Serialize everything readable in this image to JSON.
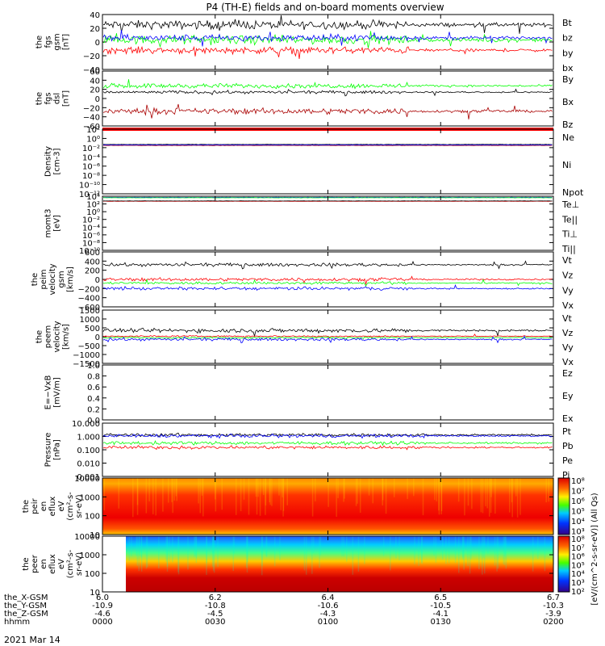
{
  "title": "P4 (TH-E) fields and on-board moments overview",
  "date_label": "2021 Mar 14",
  "chart_data": {
    "type": "line",
    "x_tick_labels": [
      "0000",
      "0030",
      "0100",
      "0130",
      "0200"
    ],
    "orbit": {
      "rows": [
        "the_X-GSM",
        "the_Y-GSM",
        "the_Z-GSM",
        "hhmm"
      ],
      "values": [
        [
          "6.0",
          "6.2",
          "6.4",
          "6.5",
          "6.7"
        ],
        [
          "-10.9",
          "-10.8",
          "-10.6",
          "-10.5",
          "-10.3"
        ],
        [
          "-4.6",
          "-4.5",
          "-4.3",
          "-4.1",
          "-3.9"
        ],
        [
          "0000",
          "0030",
          "0100",
          "0130",
          "0200"
        ]
      ]
    },
    "panels": [
      {
        "id": "fgs-gsm",
        "ylabel": [
          "the",
          "fgs",
          "gsm",
          "[nT]"
        ],
        "ylim": [
          -40,
          40
        ],
        "ticks": [
          "40",
          "20",
          "0",
          "−20",
          "−40"
        ],
        "series": [
          {
            "name": "Bt",
            "color": "#000000",
            "level": 25,
            "amp": 9
          },
          {
            "name": "bz",
            "color": "#ff0000",
            "level": -12,
            "amp": 7
          },
          {
            "name": "by",
            "color": "#00ff00",
            "level": 3,
            "amp": 9
          },
          {
            "name": "bx",
            "color": "#0000ff",
            "level": 6,
            "amp": 7
          }
        ]
      },
      {
        "id": "fgs-dsl",
        "ylabel": [
          "the",
          "fgs",
          "dsl",
          "[nT]"
        ],
        "ylim": [
          -70,
          60
        ],
        "ticks": [
          "60",
          "40",
          "20",
          "0",
          "−20",
          "−40",
          "−60"
        ],
        "series": [
          {
            "name": "By",
            "color": "#00ff00",
            "level": 25,
            "amp": 8
          },
          {
            "name": "Bx",
            "color": "#000000",
            "level": 10,
            "amp": 5
          },
          {
            "name": "Bz",
            "color": "#aa0000",
            "level": -35,
            "amp": 10
          }
        ]
      },
      {
        "id": "density",
        "ylabel": [
          "Density",
          "[cm-3]"
        ],
        "ticks": [
          "10²",
          "10⁰",
          "10⁻²",
          "10⁻⁴",
          "10⁻⁶",
          "10⁻⁸",
          "10⁻¹⁰",
          "10⁻¹²"
        ],
        "series": [
          {
            "name": "Ne",
            "color": "#aa0000",
            "level": 0.03
          },
          {
            "name": "Ni",
            "color": "#000000",
            "level": 0.05
          },
          {
            "name": "Npot",
            "color": "#0000ff",
            "level": 0.04
          }
        ]
      },
      {
        "id": "momt3",
        "ylabel": [
          "momt3",
          "[eV]"
        ],
        "ticks": [
          "10⁴",
          "10²",
          "10⁰",
          "10⁻²",
          "10⁻⁴",
          "10⁻⁶",
          "10⁻⁸",
          "10⁻¹⁰"
        ],
        "series": [
          {
            "name": "Te⊥",
            "color": "#ff0000",
            "level": 500
          },
          {
            "name": "Te||",
            "color": "#000000",
            "level": 600
          },
          {
            "name": "Ti⊥",
            "color": "#0000ff",
            "level": 5000
          },
          {
            "name": "Ti||",
            "color": "#00ff00",
            "level": 4000
          }
        ]
      },
      {
        "id": "peim-velocity",
        "ylabel": [
          "the",
          "peim",
          "velocity",
          "gsm",
          "[km/s]"
        ],
        "ylim": [
          -600,
          600
        ],
        "ticks": [
          "600",
          "400",
          "200",
          "0",
          "−200",
          "−400",
          "−600"
        ],
        "series": [
          {
            "name": "Vt",
            "color": "#000000",
            "level": 320,
            "amp": 50
          },
          {
            "name": "Vz",
            "color": "#ff0000",
            "level": 0,
            "amp": 50
          },
          {
            "name": "Vy",
            "color": "#00ff00",
            "level": -80,
            "amp": 40
          },
          {
            "name": "Vx",
            "color": "#0000ff",
            "level": -200,
            "amp": 50
          }
        ]
      },
      {
        "id": "peem-velocity",
        "ylabel": [
          "the",
          "peem",
          "velocity",
          "[km/s]"
        ],
        "ylim": [
          -1500,
          1500
        ],
        "ticks": [
          "1500",
          "1000",
          "500",
          "0",
          "−500",
          "−1000",
          "−1500"
        ],
        "series": [
          {
            "name": "Vt",
            "color": "#000000",
            "level": 350,
            "amp": 170
          },
          {
            "name": "Vz",
            "color": "#ff0000",
            "level": 30,
            "amp": 60
          },
          {
            "name": "Vy",
            "color": "#00ff00",
            "level": -50,
            "amp": 60
          },
          {
            "name": "Vx",
            "color": "#0000ff",
            "level": -150,
            "amp": 110
          }
        ]
      },
      {
        "id": "e-field",
        "ylabel": [
          "E=−VxB",
          "[mV/m]"
        ],
        "ylim": [
          0,
          1
        ],
        "ticks": [
          "1.0",
          "0.8",
          "0.6",
          "0.4",
          "0.2",
          "0.0"
        ],
        "series": [
          {
            "name": "Ez",
            "color": "#ff0000"
          },
          {
            "name": "Ey",
            "color": "#00ff00"
          },
          {
            "name": "Ex",
            "color": "#0000ff"
          }
        ]
      },
      {
        "id": "pressure",
        "ylabel": [
          "Pressure",
          "[nPa]"
        ],
        "ylim": [
          0.001,
          10
        ],
        "ticks": [
          "10.000",
          "1.000",
          "0.100",
          "0.010",
          "0.001"
        ],
        "series": [
          {
            "name": "Pt",
            "color": "#000000",
            "level": 1.3
          },
          {
            "name": "Pb",
            "color": "#ff0000",
            "level": 0.15
          },
          {
            "name": "Pe",
            "color": "#00ff00",
            "level": 0.32
          },
          {
            "name": "Pi",
            "color": "#0000ff",
            "level": 1.1
          }
        ]
      },
      {
        "id": "peir-en-eflux",
        "ylabel": [
          "the",
          "peir",
          "en",
          "eflux",
          "eV",
          "(cm²-s-",
          "sr-eV)"
        ],
        "ticks": [
          "10000",
          "1000",
          "100",
          "10"
        ],
        "type": "spectrogram"
      },
      {
        "id": "peer-en-eflux",
        "ylabel": [
          "the",
          "peer",
          "en",
          "eflux",
          "eV",
          "(cm²-s-",
          "sr-eV)"
        ],
        "ticks": [
          "10000",
          "1000",
          "100",
          "10"
        ],
        "type": "spectrogram"
      }
    ],
    "colorbar": {
      "label": "[eV/(cm^2-s-sr-eV)] (All Qs)",
      "ticks_top": [
        "10⁸",
        "10⁷",
        "10⁶",
        "10⁵",
        "10⁴",
        "10³"
      ],
      "ticks_bottom": [
        "10⁸",
        "10⁷",
        "10⁶",
        "10⁵",
        "10⁴",
        "10³",
        "10²"
      ]
    }
  }
}
